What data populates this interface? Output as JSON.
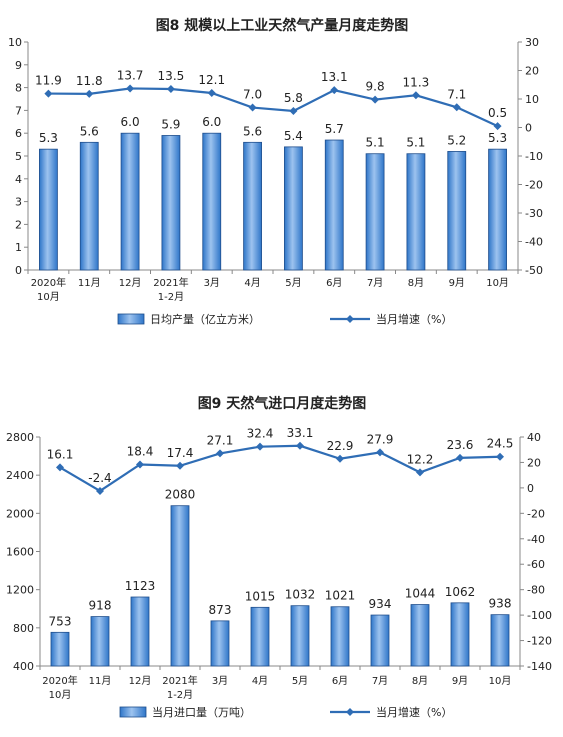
{
  "chart_data": [
    {
      "type": "bar",
      "title": "图8  规模以上工业天然气产量月度走势图",
      "categories": [
        [
          "2020年",
          "10月"
        ],
        [
          "11月"
        ],
        [
          "12月"
        ],
        [
          "2021年",
          "1-2月"
        ],
        [
          "3月"
        ],
        [
          "4月"
        ],
        [
          "5月"
        ],
        [
          "6月"
        ],
        [
          "7月"
        ],
        [
          "8月"
        ],
        [
          "9月"
        ],
        [
          "10月"
        ]
      ],
      "series": [
        {
          "name": "日均产量（亿立方米）",
          "type": "bar",
          "axis": "left",
          "values": [
            5.3,
            5.6,
            6.0,
            5.9,
            6.0,
            5.6,
            5.4,
            5.7,
            5.1,
            5.1,
            5.2,
            5.3
          ],
          "labels": [
            "5.3",
            "5.6",
            "6.0",
            "5.9",
            "6.0",
            "5.6",
            "5.4",
            "5.7",
            "5.1",
            "5.1",
            "5.2",
            "5.3"
          ]
        },
        {
          "name": "当月增速（%）",
          "type": "line",
          "axis": "right",
          "values": [
            11.9,
            11.8,
            13.7,
            13.5,
            12.1,
            7.0,
            5.8,
            13.1,
            9.8,
            11.3,
            7.1,
            0.5
          ],
          "labels": [
            "11.9",
            "11.8",
            "13.7",
            "13.5",
            "12.1",
            "7.0",
            "5.8",
            "13.1",
            "9.8",
            "11.3",
            "7.1",
            "0.5"
          ]
        }
      ],
      "ylim_left": [
        0,
        10
      ],
      "yticks_left": [
        "0",
        "1",
        "2",
        "3",
        "4",
        "5",
        "6",
        "7",
        "8",
        "9",
        "10"
      ],
      "ylim_right": [
        -50,
        30
      ],
      "yticks_right": [
        "-50",
        "-40",
        "-30",
        "-20",
        "-10",
        "0",
        "10",
        "20",
        "30"
      ],
      "legend_position": "bottom",
      "grid": false
    },
    {
      "type": "bar",
      "title": "图9  天然气进口月度走势图",
      "categories": [
        [
          "2020年",
          "10月"
        ],
        [
          "11月"
        ],
        [
          "12月"
        ],
        [
          "2021年",
          "1-2月"
        ],
        [
          "3月"
        ],
        [
          "4月"
        ],
        [
          "5月"
        ],
        [
          "6月"
        ],
        [
          "7月"
        ],
        [
          "8月"
        ],
        [
          "9月"
        ],
        [
          "10月"
        ]
      ],
      "series": [
        {
          "name": "当月进口量（万吨）",
          "type": "bar",
          "axis": "left",
          "values": [
            753,
            918,
            1123,
            2080,
            873,
            1015,
            1032,
            1021,
            934,
            1044,
            1062,
            938
          ],
          "labels": [
            "753",
            "918",
            "1123",
            "2080",
            "873",
            "1015",
            "1032",
            "1021",
            "934",
            "1044",
            "1062",
            "938"
          ]
        },
        {
          "name": "当月增速（%）",
          "type": "line",
          "axis": "right",
          "values": [
            16.1,
            -2.4,
            18.4,
            17.4,
            27.1,
            32.4,
            33.1,
            22.9,
            27.9,
            12.2,
            23.6,
            24.5
          ],
          "labels": [
            "16.1",
            "-2.4",
            "18.4",
            "17.4",
            "27.1",
            "32.4",
            "33.1",
            "22.9",
            "27.9",
            "12.2",
            "23.6",
            "24.5"
          ]
        }
      ],
      "ylim_left": [
        400,
        2800
      ],
      "yticks_left": [
        "400",
        "800",
        "1200",
        "1600",
        "2000",
        "2400",
        "2800"
      ],
      "ylim_right": [
        -140,
        40
      ],
      "yticks_right": [
        "-140",
        "-120",
        "-100",
        "-80",
        "-60",
        "-40",
        "-20",
        "0",
        "20",
        "40"
      ],
      "legend_position": "bottom",
      "grid": false
    }
  ],
  "colors": {
    "bar_fill_top": "#9dc3ef",
    "bar_fill_bottom": "#2e75c8",
    "bar_stroke": "#1f4e8c",
    "line": "#2f6db5",
    "text": "#222222",
    "axis": "#888888"
  }
}
